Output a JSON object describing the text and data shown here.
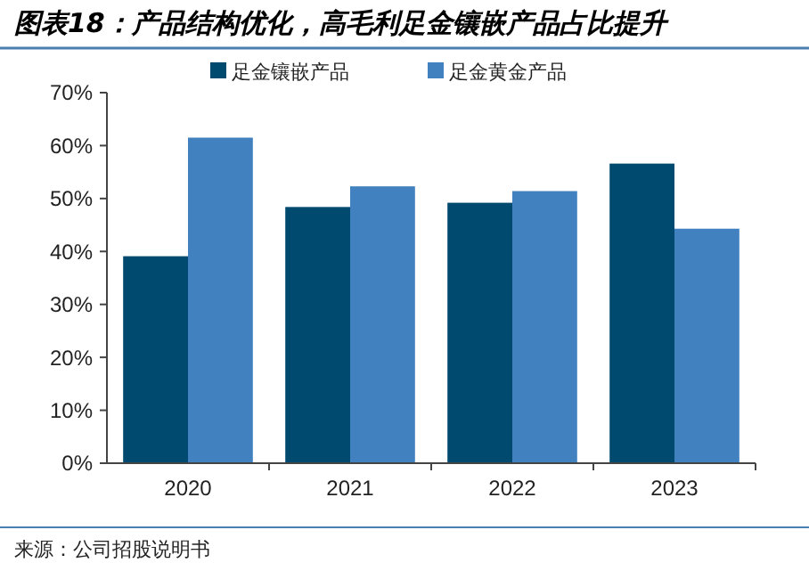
{
  "chart_data": {
    "type": "bar",
    "title": "图表18：产品结构优化，高毛利足金镶嵌产品占比提升",
    "categories": [
      "2020",
      "2021",
      "2022",
      "2023"
    ],
    "series": [
      {
        "name": "足金镶嵌产品",
        "color": "#004a70",
        "values": [
          39.1,
          48.4,
          49.2,
          56.6
        ]
      },
      {
        "name": "足金黄金产品",
        "color": "#4181c0",
        "values": [
          61.5,
          52.3,
          51.4,
          44.3
        ]
      }
    ],
    "ylim": [
      0,
      70
    ],
    "yticks": [
      {
        "value": 0,
        "label": "0%"
      },
      {
        "value": 10,
        "label": "10%"
      },
      {
        "value": 20,
        "label": "20%"
      },
      {
        "value": 30,
        "label": "30%"
      },
      {
        "value": 40,
        "label": "40%"
      },
      {
        "value": 50,
        "label": "50%"
      },
      {
        "value": 60,
        "label": "60%"
      },
      {
        "value": 70,
        "label": "70%"
      }
    ],
    "grid": false,
    "legend": "top",
    "annotations": [
      "来源：公司招股说明书"
    ]
  }
}
